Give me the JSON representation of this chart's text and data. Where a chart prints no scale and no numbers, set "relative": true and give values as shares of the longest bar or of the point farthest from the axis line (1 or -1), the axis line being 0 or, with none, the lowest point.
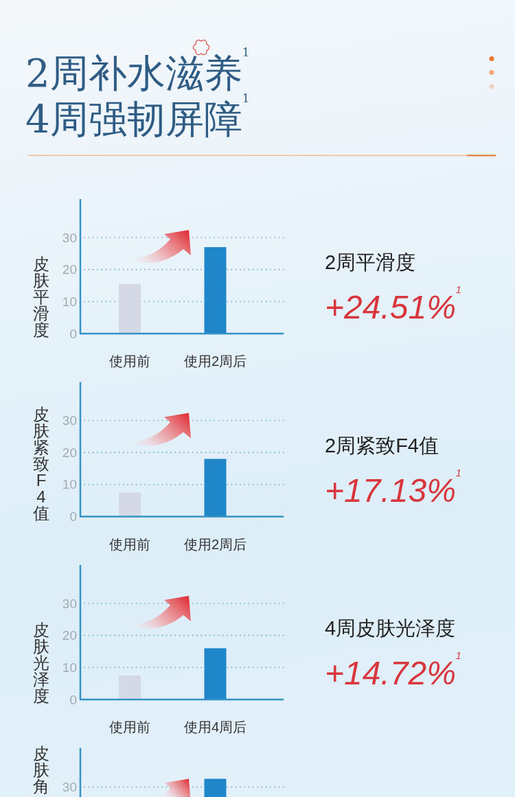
{
  "chart_data": [
    {
      "type": "bar",
      "title": "2周补水滋养$^{1}$\n4周强韧屏障$^{1}$",
      "ylabel": "皮肤平滑度",
      "categories": [
        "使用前",
        "使用2周后"
      ],
      "values": [
        15.5,
        27
      ],
      "colors": [
        "#d5d9e6",
        "#1f87c9"
      ],
      "ylim": [
        0,
        42
      ],
      "yticks": [
        0,
        10,
        20,
        30
      ],
      "grid": "y",
      "annotations": [
        "2周平滑度",
        "+24.51%$^{1}$"
      ]
    },
    {
      "type": "bar",
      "ylabel": "皮肤紧致F4值",
      "categories": [
        "使用前",
        "使用2周后"
      ],
      "values": [
        7.5,
        18
      ],
      "colors": [
        "#d5d9e6",
        "#1f87c9"
      ],
      "ylim": [
        0,
        42
      ],
      "yticks": [
        0,
        10,
        20,
        30
      ],
      "grid": "y",
      "annotations": [
        "2周紧致F4值",
        "+17.13%$^{1}$"
      ]
    },
    {
      "type": "bar",
      "ylabel": "皮肤光泽度",
      "categories": [
        "使用前",
        "使用4周后"
      ],
      "values": [
        7.5,
        16
      ],
      "colors": [
        "#d5d9e6",
        "#1f87c9"
      ],
      "ylim": [
        0,
        42
      ],
      "yticks": [
        0,
        10,
        20,
        30
      ],
      "grid": "y",
      "annotations": [
        "4周皮肤光泽度",
        "+14.72%$^{1}$"
      ]
    },
    {
      "type": "bar",
      "ylabel": "皮肤角",
      "categories": [
        null,
        null
      ],
      "values": [
        null,
        1
      ],
      "color": "#1f87c9",
      "relative": true,
      "ref_lines": [
        {
          "axis": "y",
          "value": 0.55,
          "line_style": "dotted",
          "color": "#4f9cba"
        }
      ],
      "annotations": [
        "30"
      ]
    }
  ]
}
